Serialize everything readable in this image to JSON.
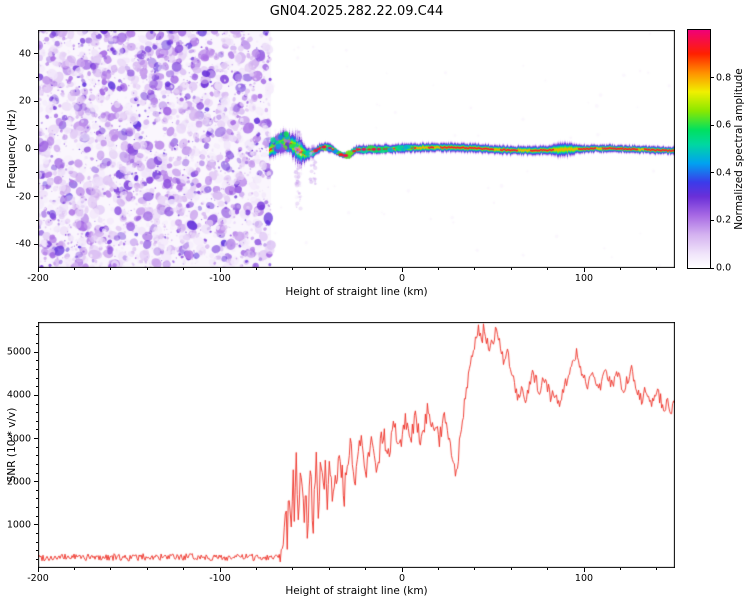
{
  "title": "GN04.2025.282.22.09.C44",
  "chart_data": [
    {
      "type": "heatmap",
      "title": "",
      "xlabel": "Height of straight line (km)",
      "ylabel": "Frequency (Hz)",
      "xlim": [
        -200,
        150
      ],
      "ylim": [
        -50,
        50
      ],
      "xticks": [
        -200,
        -100,
        0,
        100
      ],
      "yticks": [
        -40,
        -20,
        0,
        20,
        40
      ],
      "minor_x_step": 20,
      "minor_y_step": 10,
      "grid": false,
      "legend": false,
      "noise_region": {
        "x_start": -200,
        "x_end": -72,
        "description": "broadband random speckle noise filling all frequencies, purple/lavender tones"
      },
      "band": {
        "x_start": -73,
        "x_end": 150,
        "center_hz": 0,
        "approx_halfwidth_hz": 3,
        "description": "narrow horizontal spectral band centered near 0 Hz, red core surrounded by yellow/green/cyan/blue/purple halo; ragged and wider near onset (-72 to -40 km), pinched near -33 km, slight bulge near 88 km"
      },
      "colorbar": {
        "label": "Normalized spectral amplitude",
        "range": [
          0,
          1
        ],
        "ticks": [
          0.0,
          0.2,
          0.4,
          0.6,
          0.8
        ],
        "colormap": [
          [
            0.0,
            "#ffffff"
          ],
          [
            0.06,
            "#f0e4fa"
          ],
          [
            0.14,
            "#d4b2f0"
          ],
          [
            0.22,
            "#a86ae4"
          ],
          [
            0.3,
            "#6a2fd8"
          ],
          [
            0.36,
            "#3b3bea"
          ],
          [
            0.44,
            "#00a2f0"
          ],
          [
            0.52,
            "#00d8a0"
          ],
          [
            0.58,
            "#00e060"
          ],
          [
            0.66,
            "#8ae800"
          ],
          [
            0.74,
            "#f0f000"
          ],
          [
            0.82,
            "#ff9000"
          ],
          [
            0.9,
            "#ff2000"
          ],
          [
            1.0,
            "#f00078"
          ]
        ]
      }
    },
    {
      "type": "line",
      "title": "",
      "xlabel": "Height of straight line (km)",
      "ylabel": "SNR (10 * v/v)",
      "xlim": [
        -200,
        150
      ],
      "ylim": [
        0,
        5700
      ],
      "xticks": [
        -200,
        -100,
        0,
        100
      ],
      "yticks": [
        1000,
        2000,
        3000,
        4000,
        5000
      ],
      "minor_x_step": 20,
      "minor_y_step": 200,
      "grid": false,
      "legend": false,
      "jitter": [
        {
          "until": -67,
          "amp": 160
        },
        {
          "until": -30,
          "amp": 700
        },
        {
          "until": 32,
          "amp": 500
        },
        {
          "until": 999,
          "amp": 300
        }
      ],
      "series": [
        {
          "name": "SNR",
          "color": "#ee2e24",
          "x": [
            -200,
            -190,
            -180,
            -170,
            -160,
            -150,
            -140,
            -130,
            -120,
            -110,
            -100,
            -90,
            -80,
            -72,
            -68,
            -66,
            -65,
            -64,
            -63,
            -62,
            -61,
            -60,
            -59,
            -58,
            -57,
            -56,
            -55,
            -54,
            -53,
            -52,
            -51,
            -50,
            -49,
            -48,
            -47,
            -46,
            -45,
            -44,
            -43,
            -42,
            -41,
            -40,
            -38,
            -36,
            -34,
            -32,
            -30,
            -28,
            -26,
            -24,
            -22,
            -20,
            -18,
            -16,
            -14,
            -12,
            -10,
            -8,
            -6,
            -4,
            -2,
            0,
            2,
            4,
            6,
            8,
            10,
            12,
            14,
            16,
            18,
            20,
            22,
            24,
            26,
            28,
            30,
            32,
            34,
            36,
            38,
            40,
            42,
            44,
            45,
            46,
            48,
            50,
            52,
            54,
            56,
            58,
            60,
            62,
            64,
            66,
            68,
            70,
            72,
            74,
            76,
            78,
            80,
            82,
            84,
            86,
            88,
            90,
            92,
            94,
            96,
            98,
            100,
            102,
            104,
            106,
            108,
            110,
            112,
            114,
            116,
            118,
            120,
            122,
            124,
            126,
            128,
            130,
            132,
            134,
            136,
            138,
            140,
            142,
            144,
            146,
            148,
            150
          ],
          "y": [
            250,
            235,
            260,
            240,
            255,
            235,
            258,
            242,
            252,
            262,
            238,
            252,
            246,
            255,
            270,
            420,
            900,
            1600,
            700,
            1900,
            800,
            2300,
            1200,
            2600,
            900,
            1800,
            2400,
            1000,
            2000,
            800,
            1600,
            2200,
            900,
            1900,
            2500,
            1200,
            2100,
            2700,
            1500,
            2300,
            1000,
            2600,
            1400,
            2200,
            2800,
            1600,
            2400,
            2900,
            1800,
            2600,
            3000,
            2000,
            2700,
            3100,
            2200,
            2800,
            3200,
            2500,
            3000,
            3300,
            2700,
            3100,
            3400,
            2900,
            3200,
            3500,
            3000,
            3300,
            3600,
            3100,
            3400,
            2900,
            3300,
            3600,
            3100,
            2500,
            2300,
            3000,
            3700,
            4300,
            4900,
            5200,
            5500,
            5300,
            5600,
            5400,
            5100,
            5300,
            5500,
            5200,
            4800,
            5000,
            4500,
            4200,
            3900,
            4100,
            3800,
            4200,
            4500,
            4300,
            4100,
            4400,
            4200,
            3900,
            4100,
            3800,
            4000,
            4300,
            4600,
            4800,
            5000,
            4700,
            4400,
            4200,
            4500,
            4300,
            4100,
            4400,
            4600,
            4400,
            4200,
            4500,
            4300,
            4100,
            4400,
            4600,
            4300,
            4100,
            3900,
            4200,
            4000,
            3800,
            4100,
            3900,
            3700,
            3900,
            3600,
            3800
          ]
        }
      ]
    }
  ]
}
